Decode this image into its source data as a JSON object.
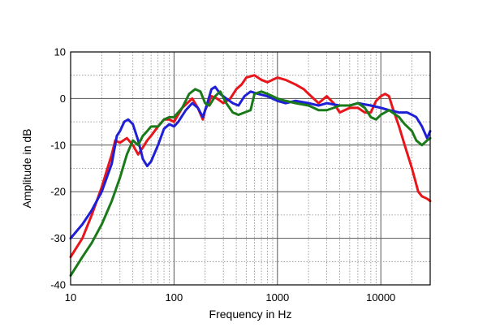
{
  "chart_data": {
    "type": "line",
    "title": "",
    "xlabel": "Frequency in Hz",
    "ylabel": "Amplitude in dB",
    "x_scale": "log",
    "xlim": [
      10,
      30000
    ],
    "ylim": [
      -40,
      10
    ],
    "x_ticks": [
      {
        "value": 10,
        "label": "10"
      },
      {
        "value": 100,
        "label": "100"
      },
      {
        "value": 1000,
        "label": "1000"
      },
      {
        "value": 10000,
        "label": "10000"
      }
    ],
    "y_ticks": [
      {
        "value": 10,
        "label": "10"
      },
      {
        "value": 0,
        "label": "0"
      },
      {
        "value": -10,
        "label": "-10"
      },
      {
        "value": -20,
        "label": "-20"
      },
      {
        "value": -30,
        "label": "-30"
      },
      {
        "value": -40,
        "label": "-40"
      }
    ],
    "grid": true,
    "legend": "none",
    "series": [
      {
        "color": "#e8151b",
        "points": [
          [
            10,
            -34
          ],
          [
            13,
            -30
          ],
          [
            16,
            -25
          ],
          [
            20,
            -19
          ],
          [
            25,
            -12
          ],
          [
            27,
            -9
          ],
          [
            30,
            -9.5
          ],
          [
            35,
            -8.5
          ],
          [
            40,
            -10
          ],
          [
            45,
            -12
          ],
          [
            50,
            -10.5
          ],
          [
            55,
            -9
          ],
          [
            60,
            -8
          ],
          [
            70,
            -6
          ],
          [
            80,
            -4.5
          ],
          [
            90,
            -4.5
          ],
          [
            100,
            -5
          ],
          [
            120,
            -2
          ],
          [
            150,
            0
          ],
          [
            170,
            -2
          ],
          [
            190,
            -4.5
          ],
          [
            200,
            -2.5
          ],
          [
            230,
            0.5
          ],
          [
            260,
            0
          ],
          [
            300,
            -1
          ],
          [
            350,
            0
          ],
          [
            400,
            2
          ],
          [
            450,
            3
          ],
          [
            500,
            4.5
          ],
          [
            600,
            5
          ],
          [
            700,
            4
          ],
          [
            800,
            3.5
          ],
          [
            1000,
            4.5
          ],
          [
            1200,
            4
          ],
          [
            1500,
            3
          ],
          [
            1800,
            2
          ],
          [
            2000,
            1
          ],
          [
            2500,
            -1
          ],
          [
            3000,
            0.5
          ],
          [
            3500,
            -1
          ],
          [
            4000,
            -3
          ],
          [
            5000,
            -2
          ],
          [
            6000,
            -2
          ],
          [
            7000,
            -3
          ],
          [
            8000,
            -3
          ],
          [
            9000,
            -0.5
          ],
          [
            10000,
            0.5
          ],
          [
            11000,
            1
          ],
          [
            12000,
            0.5
          ],
          [
            13000,
            -2
          ],
          [
            15000,
            -6
          ],
          [
            17000,
            -10
          ],
          [
            20000,
            -15
          ],
          [
            23000,
            -20
          ],
          [
            25000,
            -21
          ],
          [
            28000,
            -21.5
          ],
          [
            30000,
            -22
          ]
        ]
      },
      {
        "color": "#1f1fd6",
        "points": [
          [
            10,
            -30
          ],
          [
            13,
            -27
          ],
          [
            16,
            -24
          ],
          [
            20,
            -20
          ],
          [
            25,
            -14
          ],
          [
            28,
            -8
          ],
          [
            30,
            -7
          ],
          [
            33,
            -5
          ],
          [
            36,
            -4.5
          ],
          [
            40,
            -5.5
          ],
          [
            45,
            -9
          ],
          [
            50,
            -13
          ],
          [
            55,
            -14.5
          ],
          [
            60,
            -13.5
          ],
          [
            70,
            -10
          ],
          [
            80,
            -6.5
          ],
          [
            90,
            -5.5
          ],
          [
            100,
            -6
          ],
          [
            110,
            -5
          ],
          [
            130,
            -2.5
          ],
          [
            150,
            -1
          ],
          [
            170,
            -2
          ],
          [
            190,
            -4
          ],
          [
            210,
            -1
          ],
          [
            230,
            2
          ],
          [
            250,
            2.5
          ],
          [
            280,
            1
          ],
          [
            320,
            0
          ],
          [
            370,
            -1
          ],
          [
            420,
            -1.5
          ],
          [
            480,
            0.5
          ],
          [
            550,
            1.5
          ],
          [
            650,
            1
          ],
          [
            800,
            0.5
          ],
          [
            1000,
            -0.5
          ],
          [
            1200,
            -1
          ],
          [
            1500,
            -0.5
          ],
          [
            2000,
            -1
          ],
          [
            2500,
            -1.5
          ],
          [
            3000,
            -1
          ],
          [
            4000,
            -1.5
          ],
          [
            5000,
            -1.5
          ],
          [
            6000,
            -1
          ],
          [
            8000,
            -1.5
          ],
          [
            10000,
            -2
          ],
          [
            12000,
            -2.5
          ],
          [
            15000,
            -3
          ],
          [
            18000,
            -3
          ],
          [
            20000,
            -3.5
          ],
          [
            22000,
            -4
          ],
          [
            25000,
            -6
          ],
          [
            28000,
            -8.5
          ],
          [
            30000,
            -7
          ]
        ]
      },
      {
        "color": "#1a7a1a",
        "points": [
          [
            10,
            -38
          ],
          [
            13,
            -34
          ],
          [
            16,
            -31
          ],
          [
            20,
            -27
          ],
          [
            25,
            -22
          ],
          [
            30,
            -17
          ],
          [
            35,
            -12
          ],
          [
            40,
            -9
          ],
          [
            45,
            -10
          ],
          [
            50,
            -8
          ],
          [
            55,
            -7
          ],
          [
            60,
            -6
          ],
          [
            70,
            -6
          ],
          [
            80,
            -4.5
          ],
          [
            90,
            -4
          ],
          [
            100,
            -4
          ],
          [
            120,
            -2
          ],
          [
            140,
            1
          ],
          [
            160,
            2
          ],
          [
            180,
            1.5
          ],
          [
            200,
            -1
          ],
          [
            220,
            -1.5
          ],
          [
            250,
            0.5
          ],
          [
            280,
            1.5
          ],
          [
            320,
            -1
          ],
          [
            370,
            -3
          ],
          [
            420,
            -3.5
          ],
          [
            480,
            -3
          ],
          [
            550,
            -2.5
          ],
          [
            600,
            1
          ],
          [
            700,
            1.5
          ],
          [
            800,
            1
          ],
          [
            1000,
            0
          ],
          [
            1200,
            -0.5
          ],
          [
            1500,
            -1
          ],
          [
            2000,
            -1.5
          ],
          [
            2500,
            -2.5
          ],
          [
            3000,
            -2.5
          ],
          [
            3500,
            -2
          ],
          [
            4000,
            -1.5
          ],
          [
            5000,
            -1.5
          ],
          [
            6000,
            -1
          ],
          [
            7000,
            -2
          ],
          [
            8000,
            -4
          ],
          [
            9000,
            -4.5
          ],
          [
            10000,
            -3.5
          ],
          [
            12000,
            -2.5
          ],
          [
            15000,
            -4
          ],
          [
            17000,
            -5.5
          ],
          [
            20000,
            -7
          ],
          [
            22000,
            -9
          ],
          [
            25000,
            -10
          ],
          [
            28000,
            -9
          ],
          [
            30000,
            -8.5
          ]
        ]
      }
    ]
  }
}
